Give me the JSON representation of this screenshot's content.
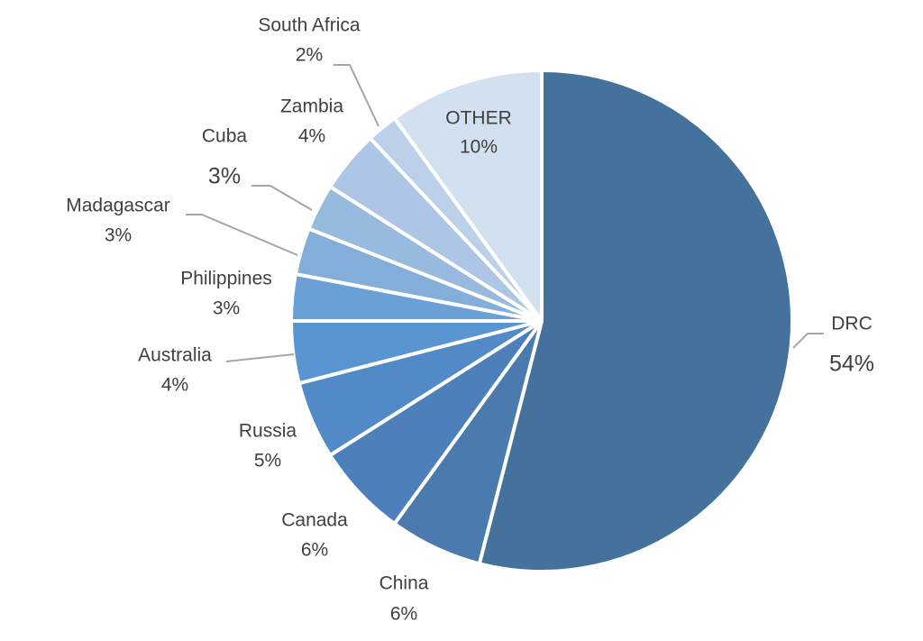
{
  "chart_data": {
    "type": "pie",
    "categories": [
      "DRC",
      "China",
      "Canada",
      "Russia",
      "Australia",
      "Philippines",
      "Madagascar",
      "Cuba",
      "Zambia",
      "South Africa",
      "OTHER"
    ],
    "values": [
      54,
      6,
      6,
      5,
      4,
      3,
      3,
      3,
      4,
      2,
      10
    ],
    "value_labels": [
      "54%",
      "6%",
      "6%",
      "5%",
      "4%",
      "3%",
      "3%",
      "3%",
      "4%",
      "2%",
      "10%"
    ],
    "colors": [
      "#44729c",
      "#4a7aae",
      "#4d80bb",
      "#528ac7",
      "#5996d1",
      "#6aa0d6",
      "#82aed9",
      "#98badf",
      "#adc6e5",
      "#bdd0ea",
      "#d3e0f0"
    ]
  }
}
